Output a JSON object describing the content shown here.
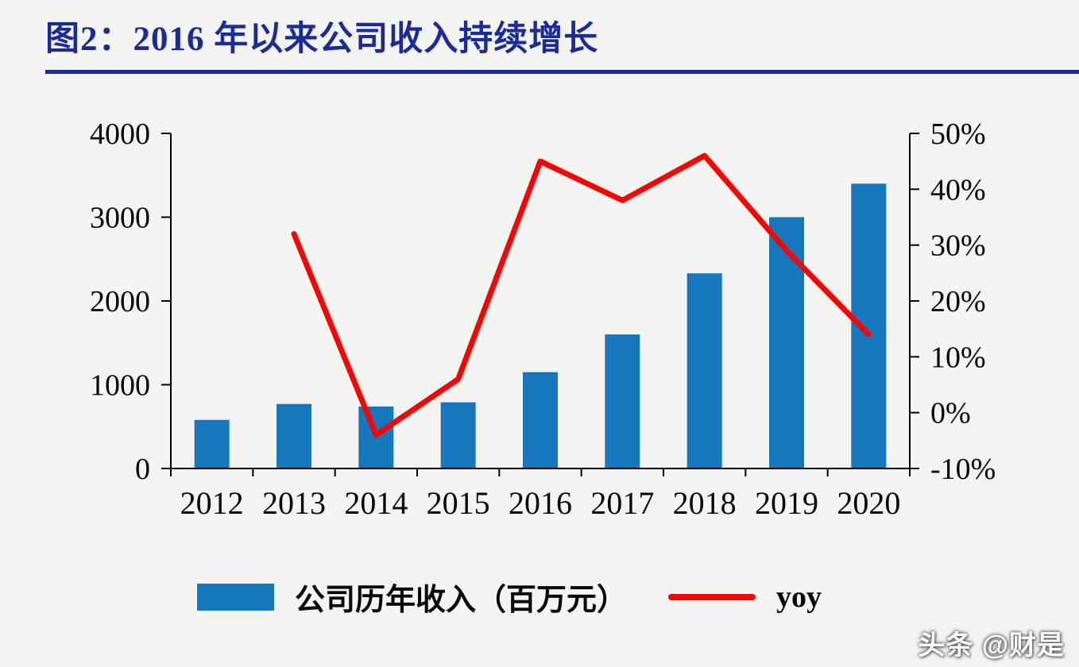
{
  "title": {
    "text": "图2：2016 年以来公司收入持续增长",
    "color": "#1B2C99"
  },
  "watermark": {
    "text": "头条 @财是"
  },
  "chart_data": {
    "type": "bar",
    "subtype": "bar-line-combo",
    "categories": [
      "2012",
      "2013",
      "2014",
      "2015",
      "2016",
      "2017",
      "2018",
      "2019",
      "2020"
    ],
    "series": [
      {
        "name": "公司历年收入（百万元）",
        "type": "bar",
        "axis": "left",
        "color": "#1777BD",
        "values": [
          580,
          770,
          740,
          790,
          1150,
          1600,
          2330,
          3000,
          3400
        ]
      },
      {
        "name": "yoy",
        "type": "line",
        "axis": "right",
        "color": "#FF0000",
        "values": [
          null,
          32,
          -4,
          6,
          45,
          38,
          46,
          29,
          14
        ]
      }
    ],
    "left_axis": {
      "min": 0,
      "max": 4000,
      "ticks": [
        0,
        1000,
        2000,
        3000,
        4000
      ],
      "suffix": ""
    },
    "right_axis": {
      "min": -10,
      "max": 50,
      "ticks": [
        -10,
        0,
        10,
        20,
        30,
        40,
        50
      ],
      "suffix": "%"
    },
    "grid": false,
    "legend_position": "bottom"
  }
}
